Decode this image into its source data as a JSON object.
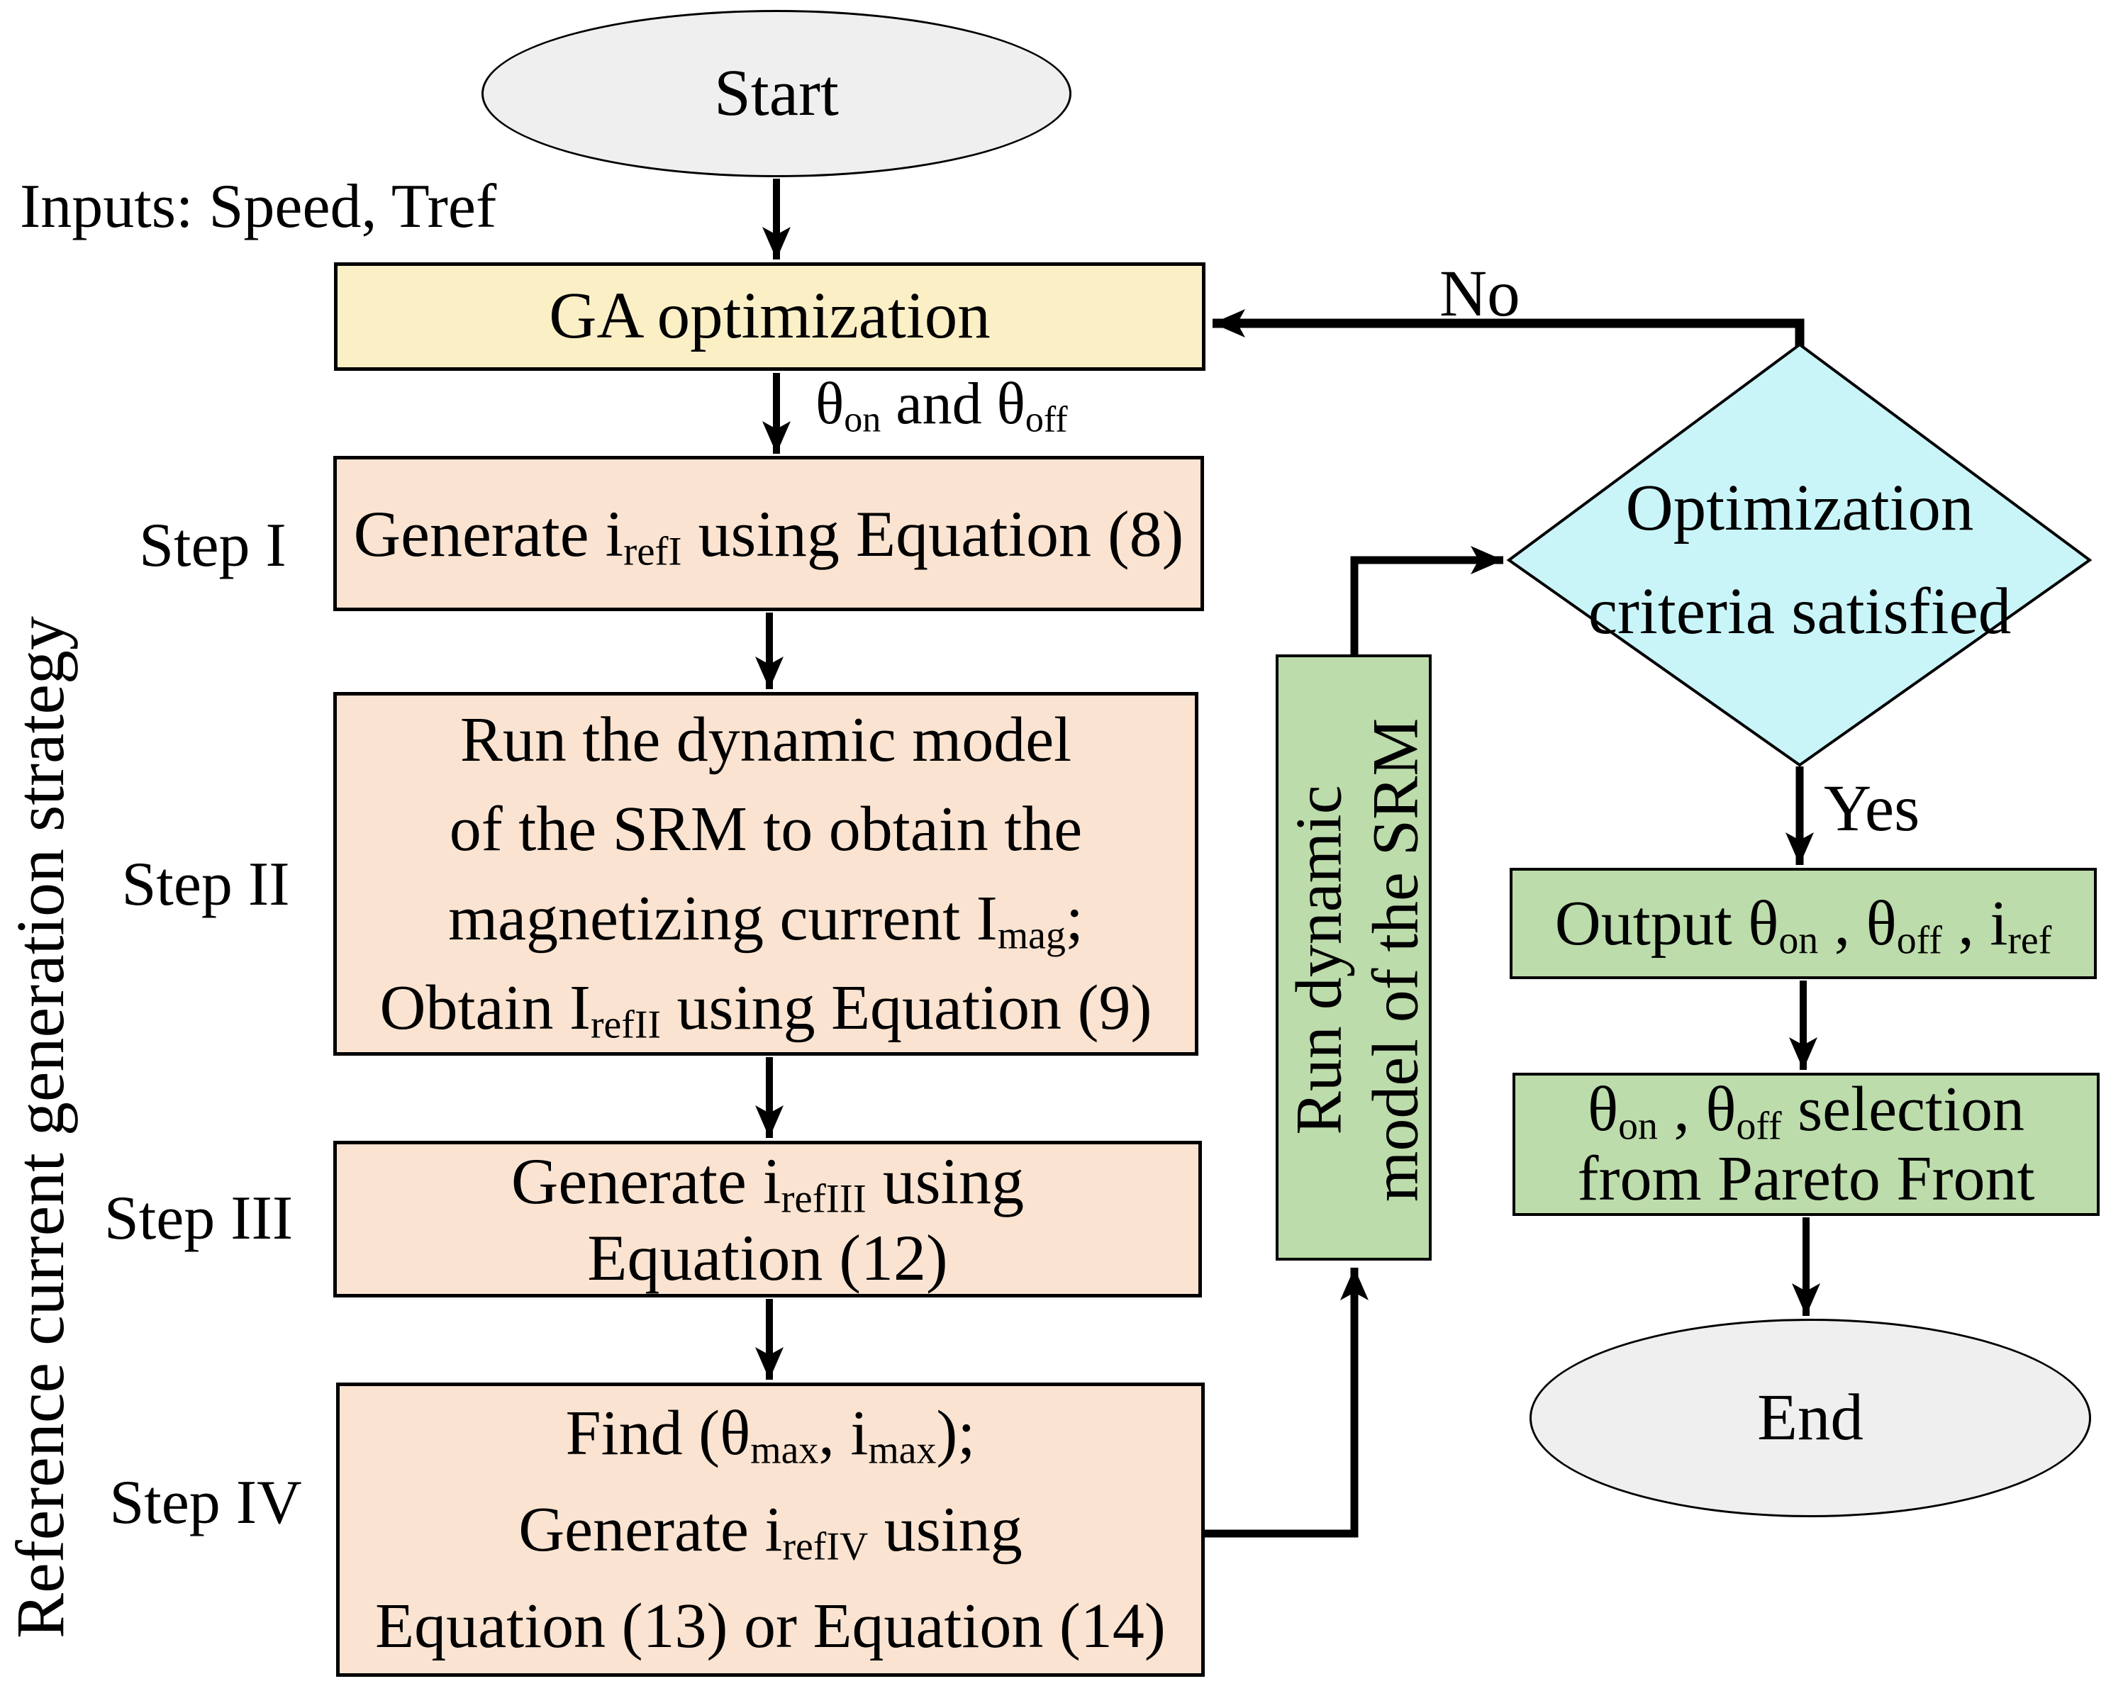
{
  "figure": {
    "type": "flowchart",
    "description": "GA-based reference current generation strategy for an SRM drive"
  },
  "colors": {
    "ga_box": "#FBEFC6",
    "step_box": "#FAE3D1",
    "green_box": "#BCDCAB",
    "diamond": "#C9F5F9",
    "terminal": "#EFEFEF",
    "line": "#000000"
  },
  "labels": {
    "inputs": "Inputs: Speed, Tref",
    "no": "No",
    "yes": "Yes",
    "side": "Reference current generation strategy",
    "theta_out": [
      {
        "t": "θ"
      },
      {
        "sub": "on"
      },
      {
        "t": " and θ"
      },
      {
        "sub": "off"
      }
    ]
  },
  "nodes": {
    "start": {
      "label": "Start"
    },
    "end": {
      "label": "End"
    },
    "ga": {
      "label": "GA optimization"
    },
    "diamond": {
      "lines": [
        [
          {
            "t": "Optimization"
          }
        ],
        [
          {
            "t": "criteria satisfied"
          }
        ]
      ]
    },
    "srm": {
      "lines": [
        [
          {
            "t": "Run dynamic"
          }
        ],
        [
          {
            "t": "model of the SRM"
          }
        ]
      ]
    },
    "output": {
      "lines": [
        [
          {
            "t": "Output θ"
          },
          {
            "sub": "on"
          },
          {
            "t": " , θ"
          },
          {
            "sub": "off"
          },
          {
            "t": " , i"
          },
          {
            "sub": "ref"
          }
        ]
      ]
    },
    "pareto": {
      "lines": [
        [
          {
            "t": "θ"
          },
          {
            "sub": "on"
          },
          {
            "t": " , θ"
          },
          {
            "sub": "off"
          },
          {
            "t": "  selection"
          }
        ],
        [
          {
            "t": "from Pareto Front"
          }
        ]
      ]
    },
    "step1": {
      "label": "Step I",
      "lines": [
        [
          {
            "t": "Generate i"
          },
          {
            "sub": "refI"
          },
          {
            "t": " using Equation (8)"
          }
        ]
      ]
    },
    "step2": {
      "label": "Step II",
      "lines": [
        [
          {
            "t": "Run the dynamic model"
          }
        ],
        [
          {
            "t": "of the SRM to obtain the"
          }
        ],
        [
          {
            "t": "magnetizing current I"
          },
          {
            "sub": "mag"
          },
          {
            "t": ";"
          }
        ],
        [
          {
            "t": "Obtain I"
          },
          {
            "sub": "refII"
          },
          {
            "t": " using Equation (9)"
          }
        ]
      ]
    },
    "step3": {
      "label": "Step III",
      "lines": [
        [
          {
            "t": "Generate i"
          },
          {
            "sub": "refIII"
          },
          {
            "t": " using"
          }
        ],
        [
          {
            "t": "Equation (12)"
          }
        ]
      ]
    },
    "step4": {
      "label": "Step IV",
      "lines": [
        [
          {
            "t": "Find (θ"
          },
          {
            "sub": "max"
          },
          {
            "t": ", i"
          },
          {
            "sub": "max"
          },
          {
            "t": ");"
          }
        ],
        [
          {
            "t": "Generate i"
          },
          {
            "sub": "refIV"
          },
          {
            "t": " using"
          }
        ],
        [
          {
            "t": "Equation (13) or Equation (14)"
          }
        ]
      ]
    }
  }
}
